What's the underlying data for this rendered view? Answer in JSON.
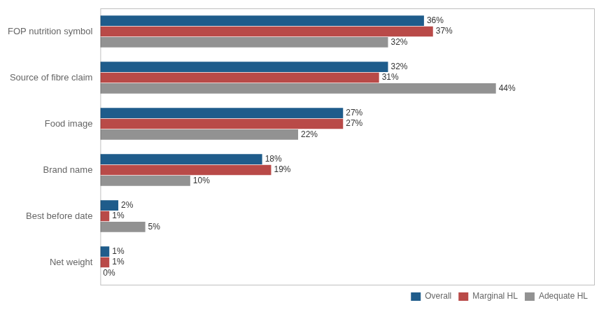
{
  "chart_data": {
    "type": "bar",
    "orientation": "horizontal",
    "categories": [
      "FOP nutrition symbol",
      "Source of fibre claim",
      "Food image",
      "Brand name",
      "Best before date",
      "Net weight"
    ],
    "series": [
      {
        "name": "Overall",
        "color": "#1F5C8B",
        "values": [
          36,
          32,
          27,
          18,
          2,
          1
        ],
        "value_labels": [
          "36%",
          "32%",
          "27%",
          "18%",
          "2%",
          "1%"
        ]
      },
      {
        "name": "Marginal HL",
        "color": "#B94A48",
        "values": [
          37,
          31,
          27,
          19,
          1,
          1
        ],
        "value_labels": [
          "37%",
          "31%",
          "27%",
          "19%",
          "1%",
          "1%"
        ]
      },
      {
        "name": "Adequate HL",
        "color": "#929292",
        "values": [
          32,
          44,
          22,
          10,
          5,
          0
        ],
        "value_labels": [
          "32%",
          "44%",
          "22%",
          "10%",
          "5%",
          "0%"
        ]
      }
    ],
    "xlim": [
      0,
      55
    ],
    "grid": false,
    "legend": "lower right",
    "data_labels": true,
    "tick_labels": "y"
  }
}
